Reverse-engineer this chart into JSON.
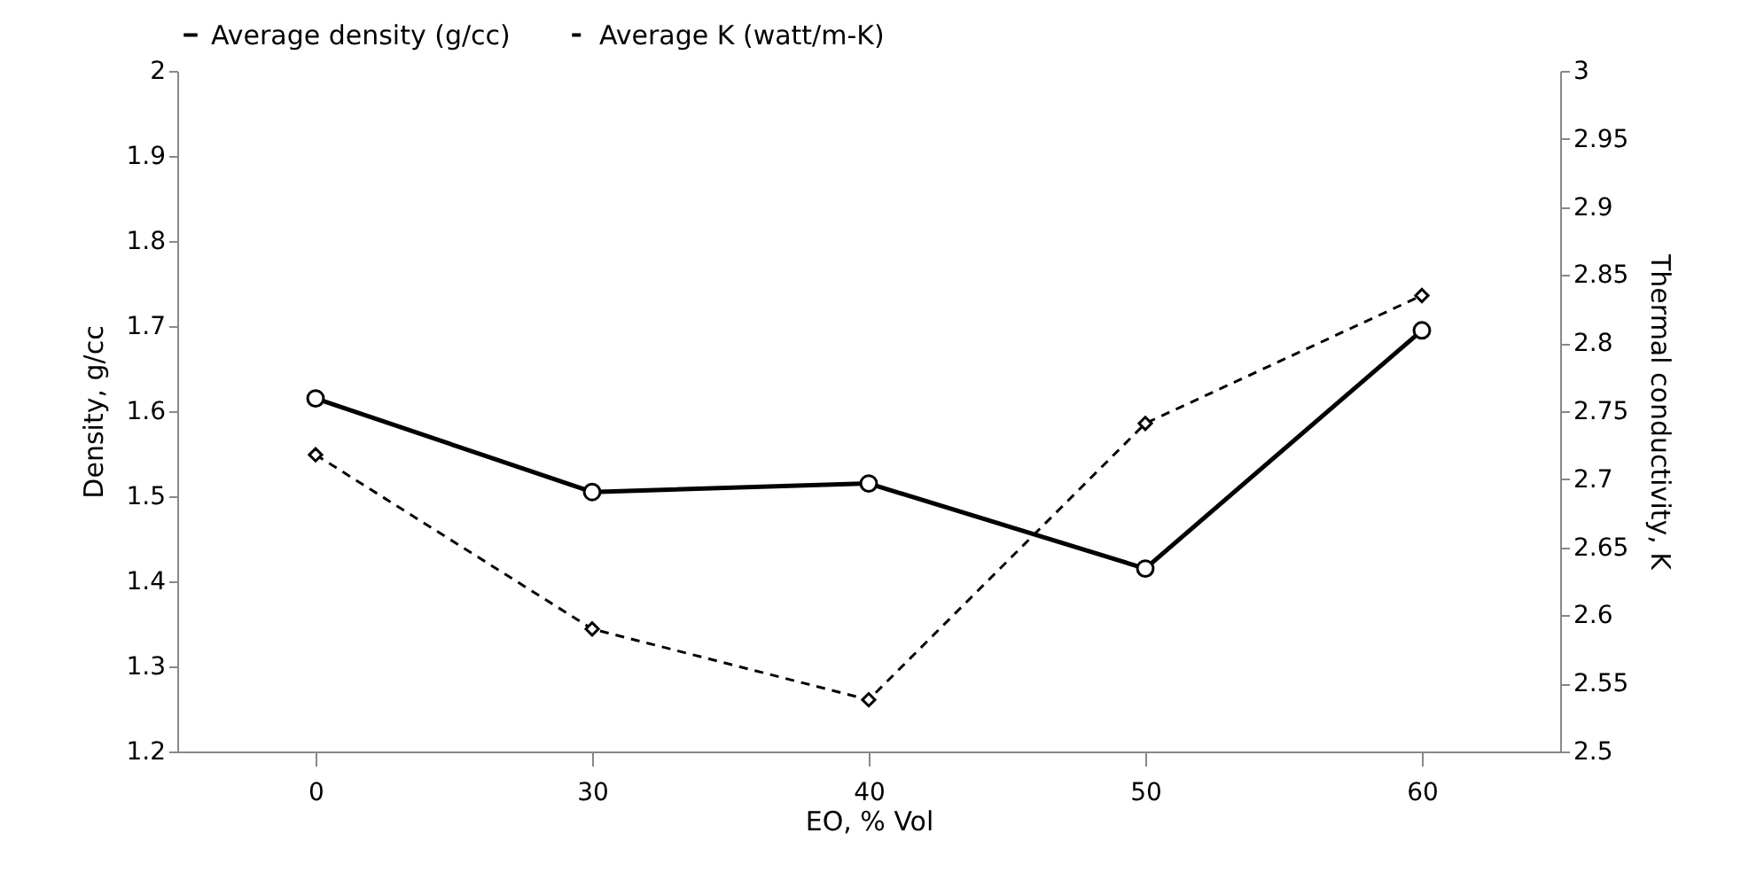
{
  "chart_data": {
    "type": "line",
    "xlabel": "EO, % Vol",
    "ylabel": "Density, g/cc",
    "y2label": "Thermal conductivity, K",
    "categories": [
      "0",
      "30",
      "40",
      "50",
      "60"
    ],
    "series": [
      {
        "name": "Average density (g/cc)",
        "color": "#000000",
        "marker": "circle",
        "line_style": "solid",
        "values": [
          1.615,
          1.505,
          1.515,
          1.415,
          1.695
        ]
      },
      {
        "name": "Average K (watt/m-K)",
        "color": "#000000",
        "marker": "diamond",
        "line_style": "dashed",
        "axis": "y2",
        "values": [
          2.718,
          2.59,
          2.538,
          2.741,
          2.835
        ]
      }
    ],
    "ylim": [
      1.2,
      2
    ],
    "yticks": [
      1.2,
      1.3,
      1.4,
      1.5,
      1.6,
      1.7,
      1.8,
      1.9,
      2
    ],
    "y2lim": [
      2.5,
      3
    ],
    "y2ticks": [
      2.5,
      2.55,
      2.6,
      2.65,
      2.7,
      2.75,
      2.8,
      2.85,
      2.9,
      2.95,
      3
    ],
    "grid": false,
    "legend": "top"
  }
}
